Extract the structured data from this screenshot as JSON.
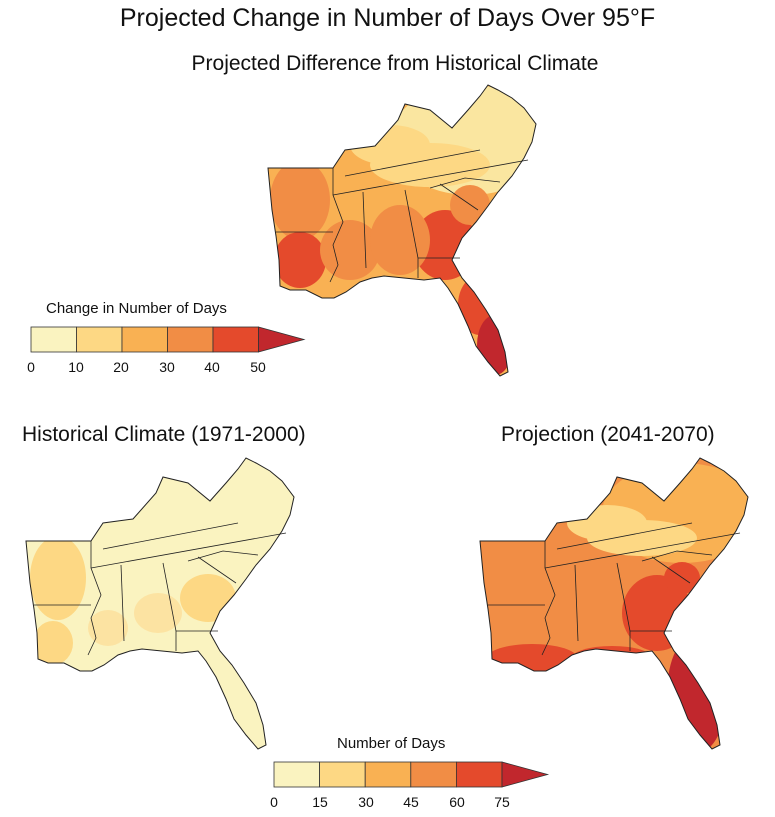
{
  "title": "Projected Change in Number of Days Over 95°F",
  "maps": {
    "difference": {
      "title": "Projected Difference from Historical Climate"
    },
    "historical": {
      "title": "Historical Climate (1971-2000)"
    },
    "projection": {
      "title": "Projection (2041-2070)"
    }
  },
  "legends": {
    "change": {
      "title": "Change in Number of Days",
      "ticks": [
        "0",
        "10",
        "20",
        "30",
        "40",
        "50"
      ],
      "colors": [
        "#faf3c0",
        "#fdd884",
        "#f9b153",
        "#f18d45",
        "#e44a2c",
        "#c1272d"
      ]
    },
    "days": {
      "title": "Number of Days",
      "ticks": [
        "0",
        "15",
        "30",
        "45",
        "60",
        "75"
      ],
      "colors": [
        "#faf3c0",
        "#fdd884",
        "#f9b153",
        "#f18d45",
        "#e44a2c",
        "#c1272d"
      ]
    }
  }
}
